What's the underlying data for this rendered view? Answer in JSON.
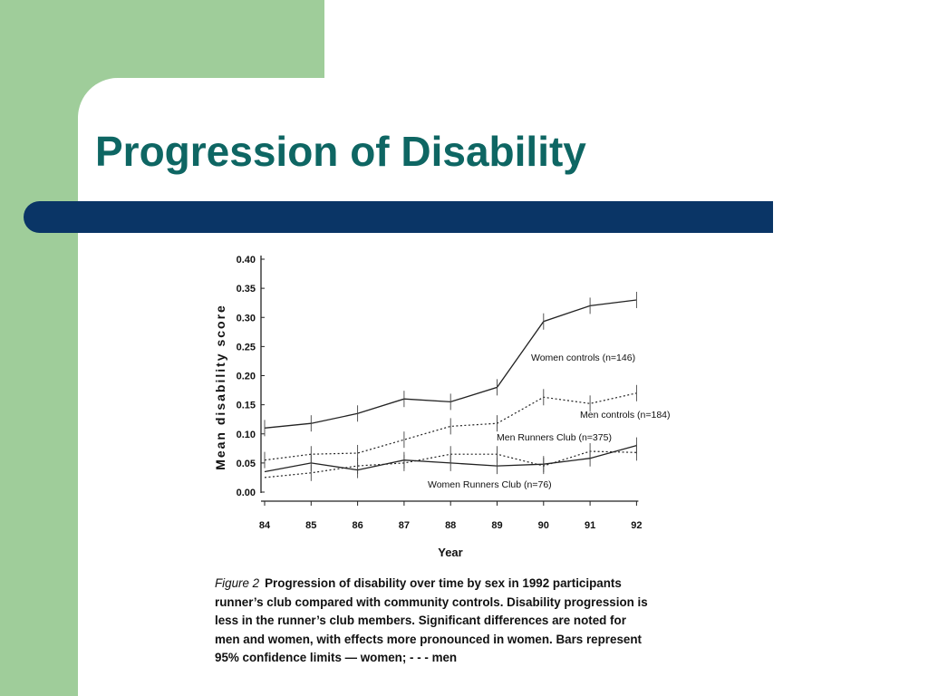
{
  "slide": {
    "title": "Progression of Disability",
    "accent_color": "#0e6663",
    "rule_color": "#0a3566",
    "side_color": "#9fcd9a"
  },
  "caption": {
    "label": "Figure 2",
    "text": "Progression of disability over time by sex in 1992 participants runner’s club compared with community controls. Disability progression is less in the runner’s club members. Significant differences are noted for men and women, with effects more pronounced in women. Bars represent 95% confidence limits — women; - - - men"
  },
  "chart_data": {
    "type": "line",
    "xlabel": "Year",
    "ylabel": "Mean disability score",
    "categories": [
      "84",
      "85",
      "86",
      "87",
      "88",
      "89",
      "90",
      "91",
      "92"
    ],
    "yticks": [
      "0.40",
      "0.35",
      "0.30",
      "0.25",
      "0.20",
      "0.15",
      "0.10",
      "0.05",
      "0.00"
    ],
    "ylim": [
      0,
      0.4
    ],
    "grid": false,
    "series": [
      {
        "name": "Women controls (n=146)",
        "style": "solid",
        "values": [
          0.11,
          0.118,
          0.135,
          0.16,
          0.155,
          0.18,
          0.293,
          0.32,
          0.33
        ]
      },
      {
        "name": "Men controls (n=184)",
        "style": "dotted",
        "values": [
          0.055,
          0.065,
          0.067,
          0.09,
          0.113,
          0.118,
          0.163,
          0.152,
          0.17
        ]
      },
      {
        "name": "Men Runners Club (n=375)",
        "style": "dotted",
        "values": [
          0.025,
          0.033,
          0.045,
          0.05,
          0.065,
          0.065,
          0.045,
          0.07,
          0.068
        ]
      },
      {
        "name": "Women Runners Club (n=76)",
        "style": "solid",
        "values": [
          0.035,
          0.05,
          0.038,
          0.055,
          0.05,
          0.045,
          0.048,
          0.058,
          0.08
        ]
      }
    ]
  }
}
